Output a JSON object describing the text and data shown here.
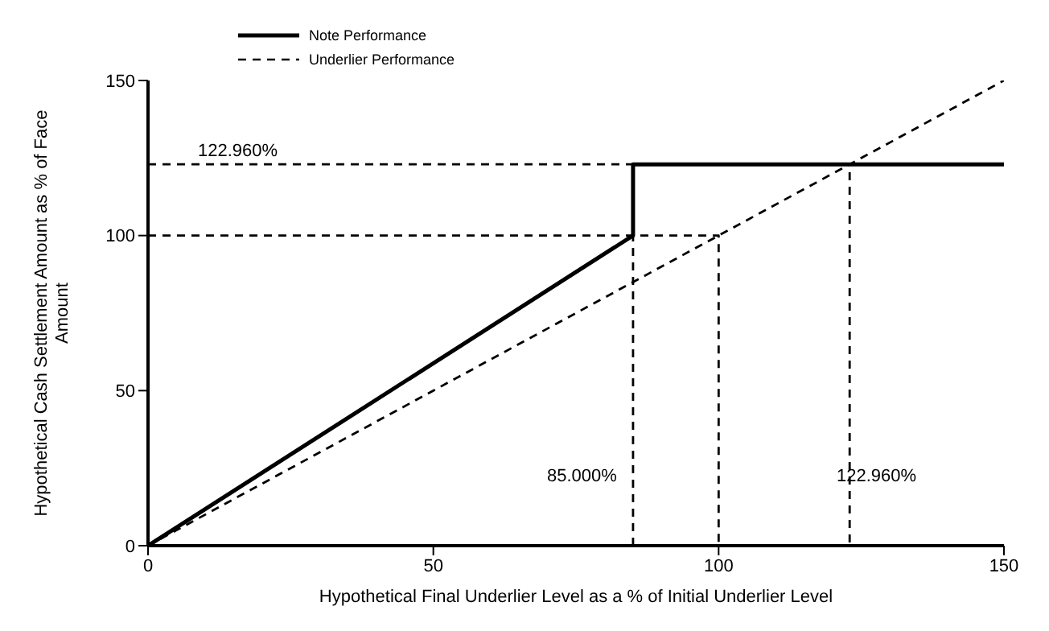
{
  "chart_data": {
    "type": "line",
    "xlabel": "Hypothetical Final Underlier Level as a % of Initial Underlier Level",
    "ylabel": "Hypothetical Cash Settlement Amount as % of Face Amount",
    "series": [
      {
        "name": "Note Performance",
        "color": "#000000",
        "line_style": "solid",
        "x": [
          0,
          85,
          85,
          150
        ],
        "values": [
          0,
          100,
          122.96,
          122.96
        ]
      },
      {
        "name": "Underlier Performance",
        "color": "#000000",
        "line_style": "dashed",
        "x": [
          0,
          150
        ],
        "values": [
          0,
          150
        ]
      },
      {
        "color": "#000000",
        "line_style": "dashed",
        "x": [
          0,
          122.96,
          122.96
        ],
        "values": [
          122.96,
          122.96,
          0
        ]
      },
      {
        "color": "#000000",
        "line_style": "dashed",
        "x": [
          0,
          100,
          100
        ],
        "values": [
          100,
          100,
          0
        ]
      },
      {
        "color": "#000000",
        "line_style": "dashed",
        "x": [
          85,
          85
        ],
        "values": [
          0,
          100
        ]
      }
    ],
    "xlim": [
      0,
      150
    ],
    "xticks": [
      0,
      50,
      100,
      150
    ],
    "ylim": [
      0,
      150
    ],
    "yticks": [
      0,
      50,
      100,
      150
    ],
    "grid": false,
    "legend": "top left",
    "marker": "none",
    "annotations": [
      "122.960%",
      "85.000%",
      "122.960%"
    ]
  }
}
